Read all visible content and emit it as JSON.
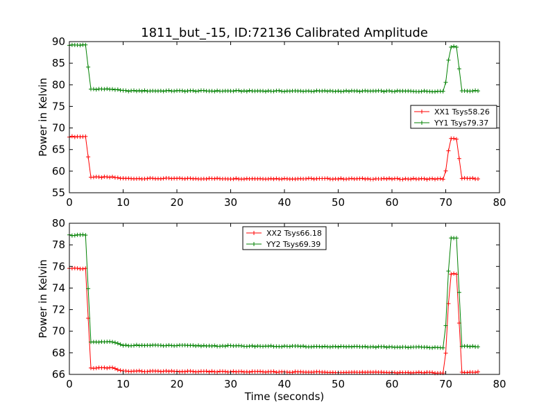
{
  "figure": {
    "title": "1811_but_-15, ID:72136 Calibrated Amplitude"
  },
  "chart_data": [
    {
      "type": "line",
      "title": "1811_but_-15, ID:72136 Calibrated Amplitude",
      "xlabel": "",
      "ylabel": "Power in Kelvin",
      "xlim": [
        0,
        80
      ],
      "ylim": [
        55,
        90
      ],
      "xticks": [
        0,
        10,
        20,
        30,
        40,
        50,
        60,
        70,
        80
      ],
      "yticks": [
        55,
        60,
        65,
        70,
        75,
        80,
        85,
        90
      ],
      "legend_position": "center-right",
      "grid": false,
      "markers": "+",
      "series": [
        {
          "name": "XX1 Tsys58.26",
          "color": "#ff0000",
          "segments": [
            {
              "x0": 0.0,
              "x1": 3.0,
              "y0": 68.0,
              "y1": 68.0
            },
            {
              "x0": 3.0,
              "x1": 4.0,
              "y0": 68.0,
              "y1": 58.6
            },
            {
              "x0": 4.0,
              "x1": 8.0,
              "y0": 58.6,
              "y1": 58.6
            },
            {
              "x0": 8.0,
              "x1": 10.0,
              "y0": 58.6,
              "y1": 58.3
            },
            {
              "x0": 10.0,
              "x1": 69.8,
              "y0": 58.3,
              "y1": 58.2
            },
            {
              "x0": 69.8,
              "x1": 70.8,
              "y0": 58.2,
              "y1": 67.5
            },
            {
              "x0": 70.8,
              "x1": 72.0,
              "y0": 67.5,
              "y1": 67.5
            },
            {
              "x0": 72.0,
              "x1": 73.0,
              "y0": 67.5,
              "y1": 58.3
            },
            {
              "x0": 73.0,
              "x1": 76.4,
              "y0": 58.3,
              "y1": 58.3
            }
          ]
        },
        {
          "name": "YY1 Tsys79.37",
          "color": "#008000",
          "segments": [
            {
              "x0": 0.0,
              "x1": 3.0,
              "y0": 89.2,
              "y1": 89.2
            },
            {
              "x0": 3.0,
              "x1": 4.0,
              "y0": 89.2,
              "y1": 79.0
            },
            {
              "x0": 4.0,
              "x1": 8.0,
              "y0": 79.0,
              "y1": 79.0
            },
            {
              "x0": 8.0,
              "x1": 10.0,
              "y0": 79.0,
              "y1": 78.6
            },
            {
              "x0": 10.0,
              "x1": 69.8,
              "y0": 78.6,
              "y1": 78.5
            },
            {
              "x0": 69.8,
              "x1": 70.8,
              "y0": 78.5,
              "y1": 88.8
            },
            {
              "x0": 70.8,
              "x1": 72.0,
              "y0": 88.8,
              "y1": 88.8
            },
            {
              "x0": 72.0,
              "x1": 73.0,
              "y0": 88.8,
              "y1": 78.6
            },
            {
              "x0": 73.0,
              "x1": 76.4,
              "y0": 78.6,
              "y1": 78.6
            }
          ]
        }
      ]
    },
    {
      "type": "line",
      "title": "",
      "xlabel": "Time (seconds)",
      "ylabel": "Power in Kelvin",
      "xlim": [
        0,
        80
      ],
      "ylim": [
        66,
        80
      ],
      "xticks": [
        0,
        10,
        20,
        30,
        40,
        50,
        60,
        70,
        80
      ],
      "yticks": [
        66,
        68,
        70,
        72,
        74,
        76,
        78,
        80
      ],
      "legend_position": "upper-center",
      "grid": false,
      "markers": "+",
      "series": [
        {
          "name": "XX2 Tsys66.18",
          "color": "#ff0000",
          "segments": [
            {
              "x0": 0.0,
              "x1": 3.0,
              "y0": 75.8,
              "y1": 75.8
            },
            {
              "x0": 3.0,
              "x1": 4.0,
              "y0": 75.8,
              "y1": 66.6
            },
            {
              "x0": 4.0,
              "x1": 8.0,
              "y0": 66.6,
              "y1": 66.6
            },
            {
              "x0": 8.0,
              "x1": 10.0,
              "y0": 66.6,
              "y1": 66.3
            },
            {
              "x0": 10.0,
              "x1": 69.8,
              "y0": 66.3,
              "y1": 66.15
            },
            {
              "x0": 69.8,
              "x1": 70.8,
              "y0": 66.15,
              "y1": 75.3
            },
            {
              "x0": 70.8,
              "x1": 72.0,
              "y0": 75.3,
              "y1": 75.3
            },
            {
              "x0": 72.0,
              "x1": 73.0,
              "y0": 75.3,
              "y1": 66.2
            },
            {
              "x0": 73.0,
              "x1": 76.4,
              "y0": 66.2,
              "y1": 66.2
            }
          ]
        },
        {
          "name": "YY2 Tsys69.39",
          "color": "#008000",
          "segments": [
            {
              "x0": 0.0,
              "x1": 3.0,
              "y0": 78.9,
              "y1": 78.9
            },
            {
              "x0": 3.0,
              "x1": 4.0,
              "y0": 78.9,
              "y1": 69.0
            },
            {
              "x0": 4.0,
              "x1": 8.0,
              "y0": 69.0,
              "y1": 69.0
            },
            {
              "x0": 8.0,
              "x1": 10.0,
              "y0": 69.0,
              "y1": 68.7
            },
            {
              "x0": 10.0,
              "x1": 69.8,
              "y0": 68.7,
              "y1": 68.5
            },
            {
              "x0": 69.8,
              "x1": 70.8,
              "y0": 68.5,
              "y1": 78.6
            },
            {
              "x0": 70.8,
              "x1": 72.0,
              "y0": 78.6,
              "y1": 78.6
            },
            {
              "x0": 72.0,
              "x1": 73.0,
              "y0": 78.6,
              "y1": 68.6
            },
            {
              "x0": 73.0,
              "x1": 76.4,
              "y0": 68.6,
              "y1": 68.6
            }
          ]
        }
      ]
    }
  ]
}
